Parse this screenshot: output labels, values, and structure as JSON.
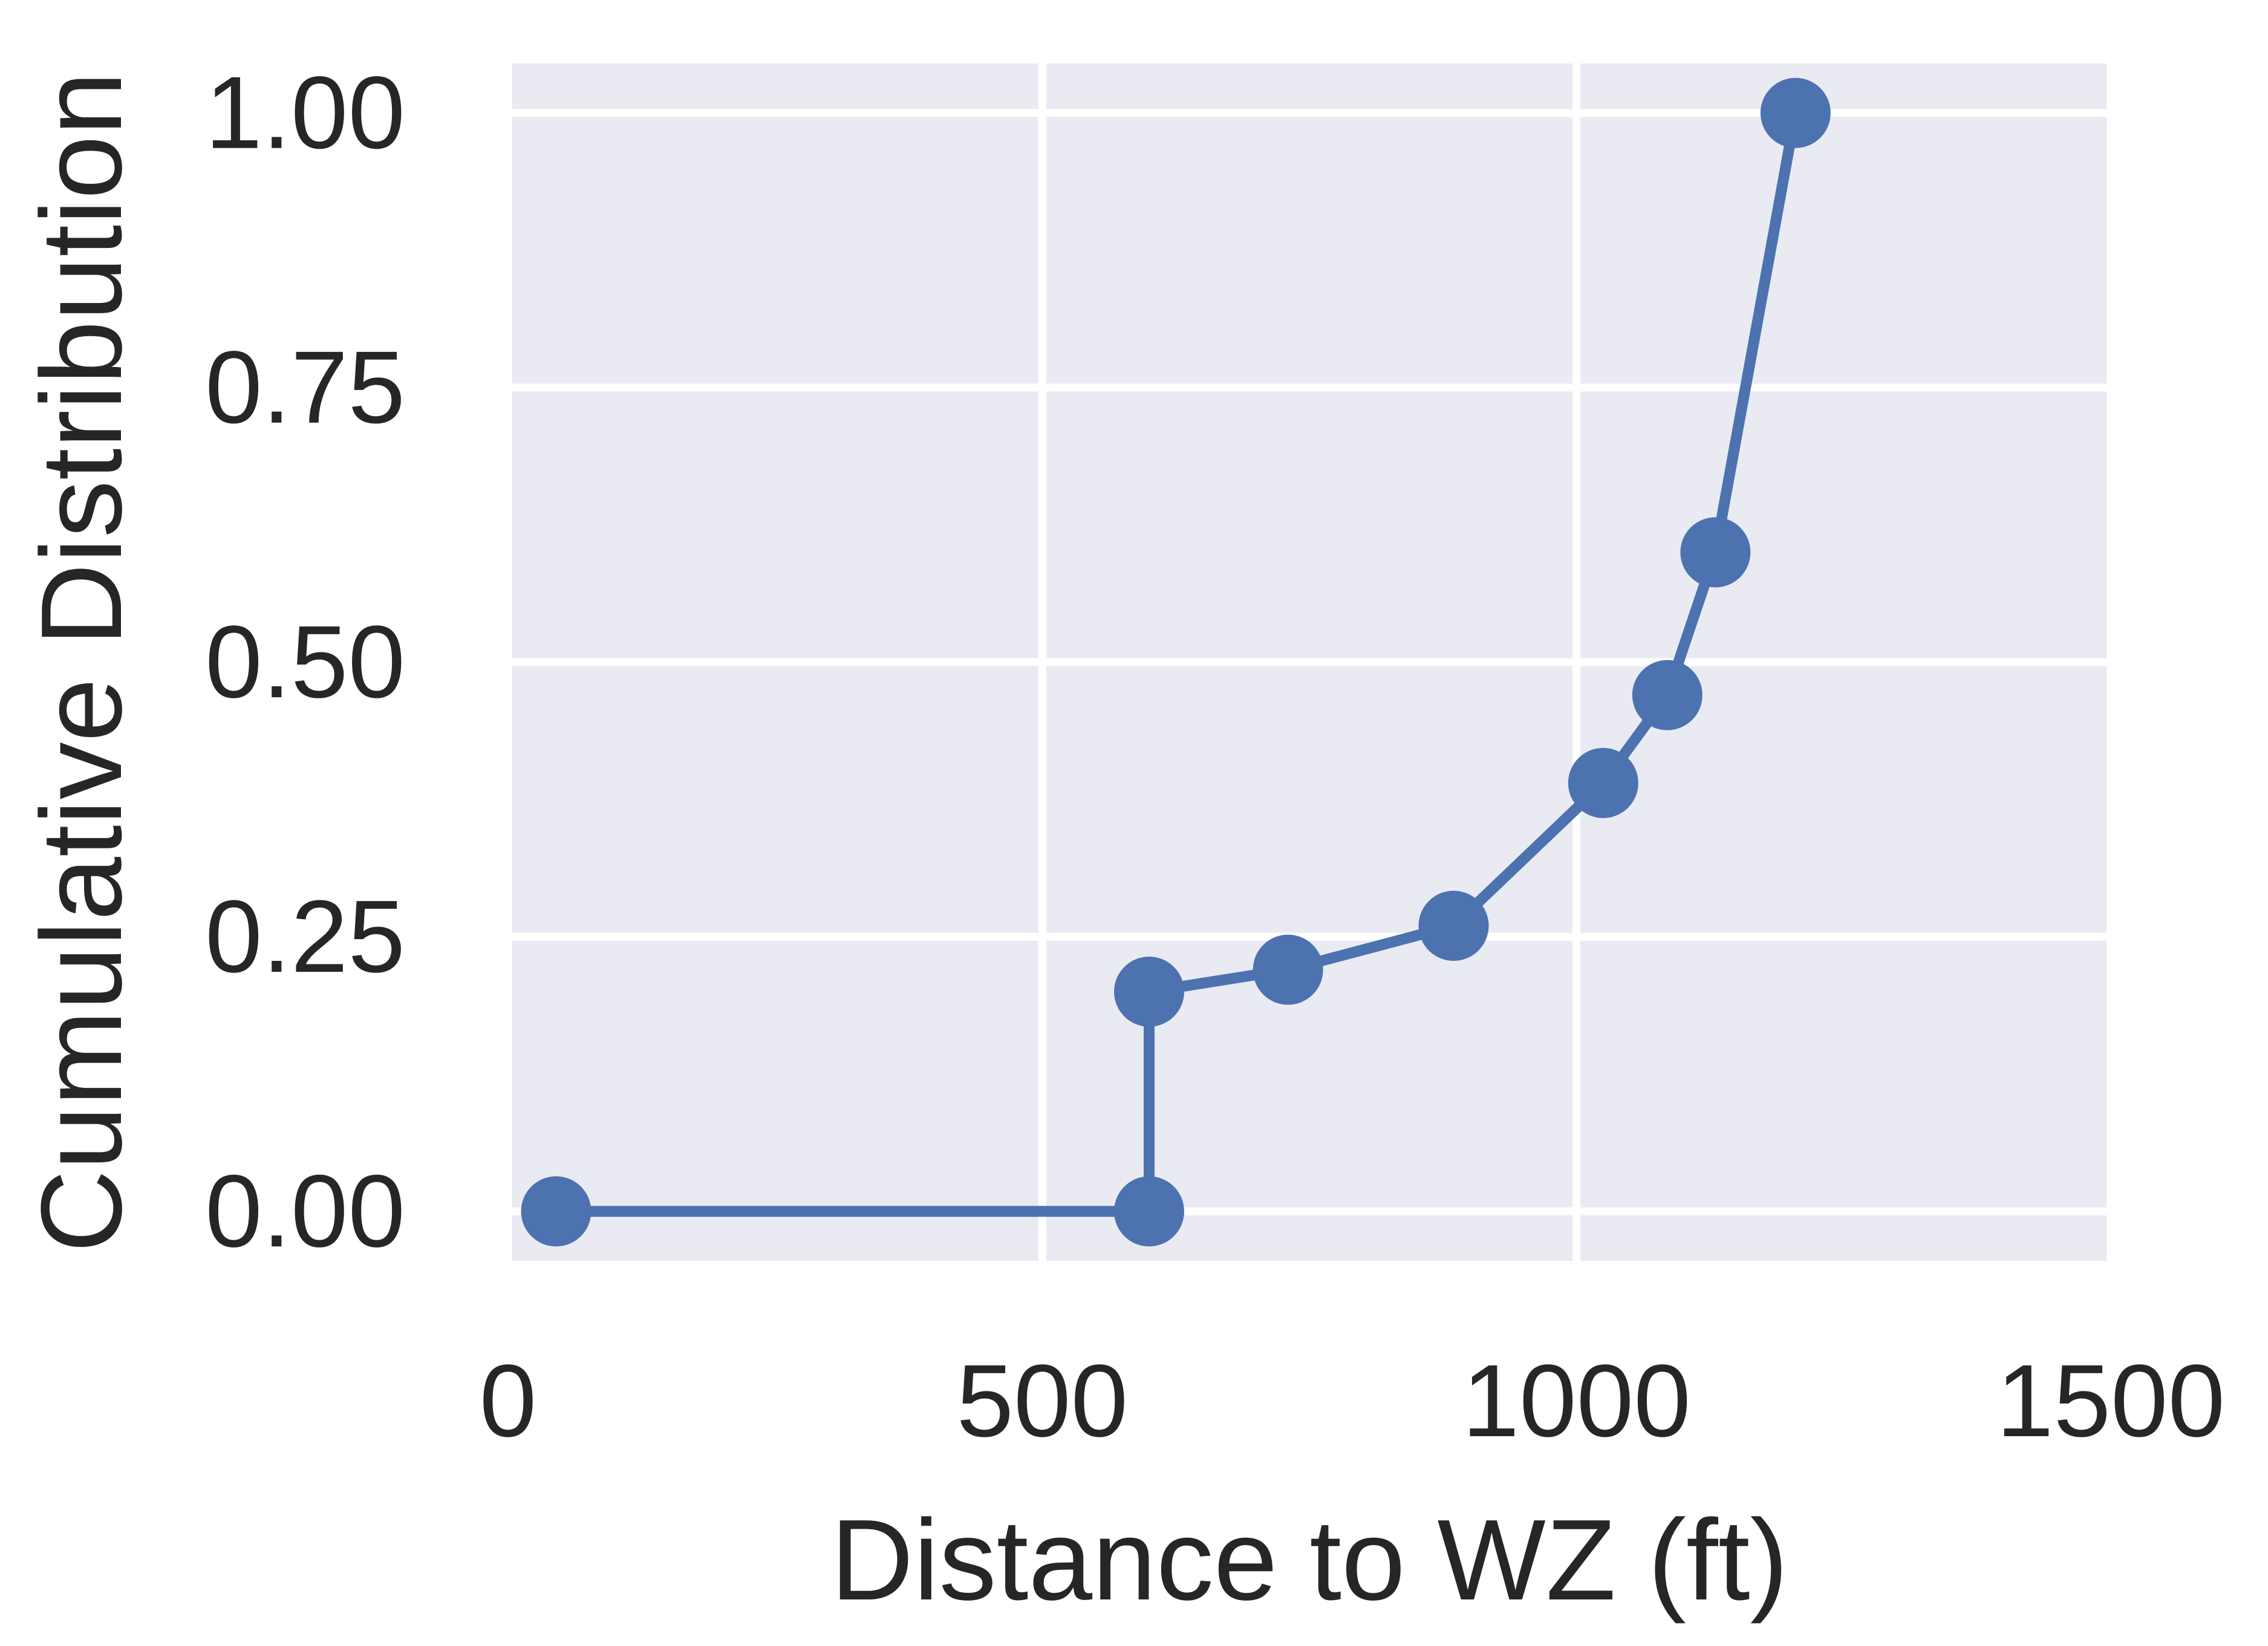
{
  "chart_data": {
    "type": "line",
    "title": "",
    "xlabel": "Distance to WZ (ft)",
    "ylabel": "Cumulative Distribution",
    "xlim": [
      0,
      1500
    ],
    "ylim": [
      -0.045,
      1.045
    ],
    "x_ticks": [
      0,
      500,
      1000,
      1500
    ],
    "x_tick_labels": [
      "0",
      "500",
      "1000",
      "1500"
    ],
    "y_ticks": [
      0.0,
      0.25,
      0.5,
      0.75,
      1.0
    ],
    "y_tick_labels": [
      "0.00",
      "0.25",
      "0.50",
      "0.75",
      "1.00"
    ],
    "grid": true,
    "legend": "none",
    "series": [
      {
        "x": [
          45,
          600,
          600,
          730,
          885,
          1025,
          1085,
          1130,
          1205
        ],
        "y": [
          0.0,
          0.0,
          0.2,
          0.22,
          0.26,
          0.39,
          0.47,
          0.6,
          1.0
        ],
        "marker": "circle",
        "color": "#4c72b0"
      }
    ],
    "colors": {
      "plot_background": "#eaeaf2",
      "grid": "#ffffff",
      "text": "#262626"
    }
  }
}
